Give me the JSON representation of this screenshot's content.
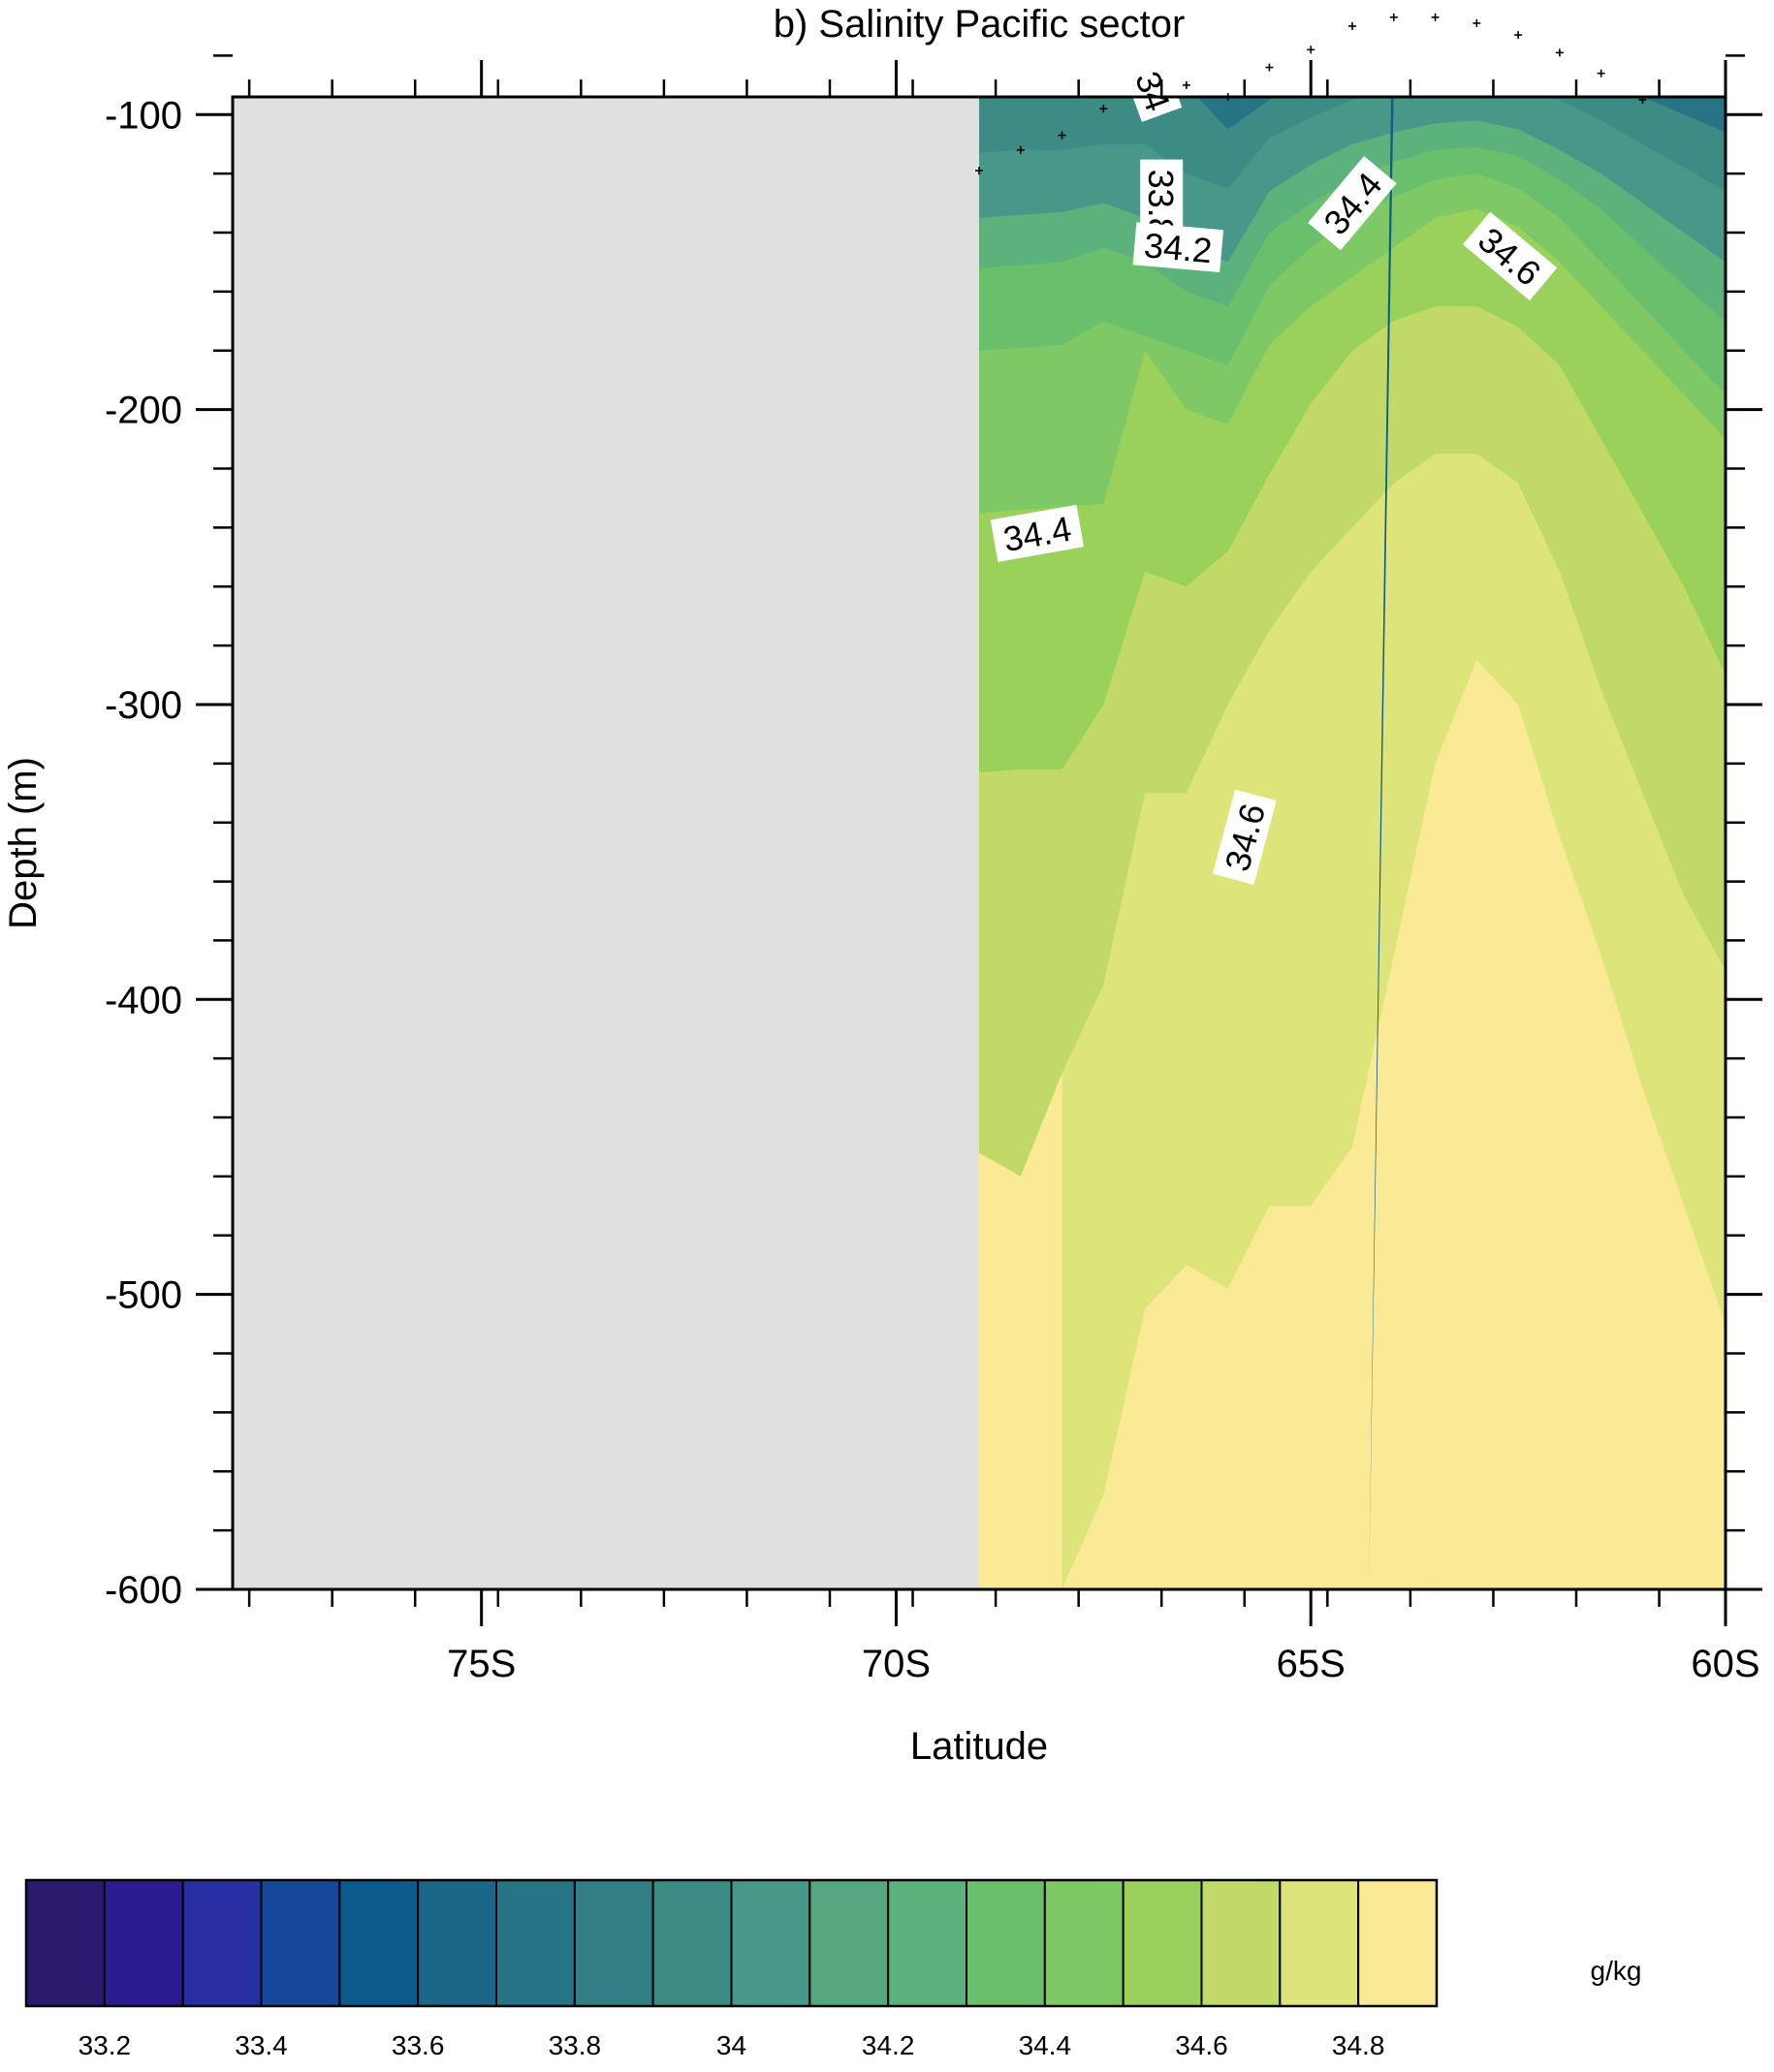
{
  "chart_data": {
    "type": "heatmap",
    "title": "b) Salinity Pacific sector",
    "xlabel": "Latitude",
    "ylabel": "Depth (m)",
    "units": "g/kg",
    "xlim": [
      -78,
      -60
    ],
    "ylim": [
      -600,
      -94
    ],
    "x_ticks": [
      {
        "value": -75,
        "label": "75S"
      },
      {
        "value": -70,
        "label": "70S"
      },
      {
        "value": -65,
        "label": "65S"
      },
      {
        "value": -60,
        "label": "60S"
      }
    ],
    "y_ticks": [
      {
        "value": -100,
        "label": "-100"
      },
      {
        "value": -200,
        "label": "-200"
      },
      {
        "value": -300,
        "label": "-300"
      },
      {
        "value": -400,
        "label": "-400"
      },
      {
        "value": -500,
        "label": "-500"
      },
      {
        "value": -600,
        "label": "-600"
      }
    ],
    "missing_region": {
      "x_from": -78,
      "x_to": -69,
      "color": "#e0e0e0"
    },
    "colorbar": {
      "levels": [
        33.2,
        33.4,
        33.6,
        33.8,
        34,
        34.2,
        34.4,
        34.6,
        34.8
      ],
      "colors": [
        "#2c1a6e",
        "#2c1c92",
        "#2630a2",
        "#154899",
        "#0d5a8e",
        "#1a6789",
        "#267486",
        "#317f85",
        "#3c8b84",
        "#48988a",
        "#54a77f",
        "#5bb27a",
        "#6abf6c",
        "#7ec865",
        "#99d15b",
        "#c1da67",
        "#dde57a",
        "#faea95"
      ]
    },
    "field_bands": [
      {
        "value": 34.8,
        "color": "#faea95"
      },
      {
        "value": 34.7,
        "color": "#dde57a"
      },
      {
        "value": 34.6,
        "color": "#c1da67"
      },
      {
        "value": 34.5,
        "color": "#99d15b"
      },
      {
        "value": 34.4,
        "color": "#7ec865"
      },
      {
        "value": 34.3,
        "color": "#6abf6c"
      },
      {
        "value": 34.2,
        "color": "#5bb27a"
      },
      {
        "value": 34.1,
        "color": "#48988a"
      },
      {
        "value": 34.0,
        "color": "#3c8b84"
      },
      {
        "value": 33.9,
        "color": "#267486"
      },
      {
        "value": 33.8,
        "color": "#1a6789"
      },
      {
        "value": 33.6,
        "color": "#0d5a8e"
      }
    ],
    "contour_labels": [
      {
        "text": "33.8",
        "x": -66.8,
        "y": -130,
        "angle": 90
      },
      {
        "text": "34",
        "x": -66.9,
        "y": -92,
        "angle": 70
      },
      {
        "text": "34.2",
        "x": -66.6,
        "y": -145,
        "angle": 5
      },
      {
        "text": "34.4",
        "x": -64.5,
        "y": -130,
        "angle": -50
      },
      {
        "text": "34.6",
        "x": -62.6,
        "y": -148,
        "angle": 40
      },
      {
        "text": "34.4",
        "x": -68.3,
        "y": -242,
        "angle": -10
      },
      {
        "text": "34.6",
        "x": -65.8,
        "y": -345,
        "angle": -75
      }
    ],
    "mixed_layer_depth": {
      "x": [
        -69,
        -68.5,
        -68,
        -67.5,
        -66.5,
        -66,
        -65.5,
        -65,
        -64.5,
        -64,
        -63.5,
        -63,
        -62.5,
        -62,
        -61.5,
        -61
      ],
      "y": [
        -119,
        -112,
        -107,
        -98,
        -90,
        -94,
        -84,
        -78,
        -70,
        -67,
        -67,
        -69,
        -73,
        -79,
        -86,
        -95
      ]
    },
    "grid": false,
    "legend": "colorbar at bottom"
  }
}
